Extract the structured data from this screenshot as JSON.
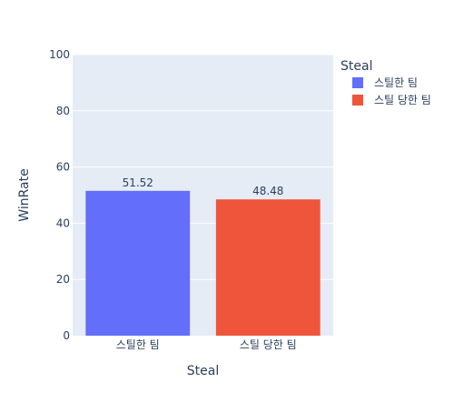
{
  "chart_data": {
    "type": "bar",
    "title": "",
    "xlabel": "Steal",
    "ylabel": "WinRate",
    "ylim": [
      0,
      100
    ],
    "yticks": [
      0,
      20,
      40,
      60,
      80,
      100
    ],
    "grid": true,
    "legend_position": "right",
    "legend_title": "Steal",
    "categories": [
      "스틸한 팀",
      "스틸 당한 팀"
    ],
    "series": [
      {
        "name": "스틸한 팀",
        "color": "#636efa",
        "values": [
          51.52,
          null
        ]
      },
      {
        "name": "스틸 당한 팀",
        "color": "#ef553b",
        "values": [
          null,
          48.48
        ]
      }
    ],
    "data_labels": [
      "51.52",
      "48.48"
    ]
  },
  "colors": {
    "plot_background": "#e5ecf6",
    "grid": "#ffffff",
    "text": "#2a3f5f"
  }
}
